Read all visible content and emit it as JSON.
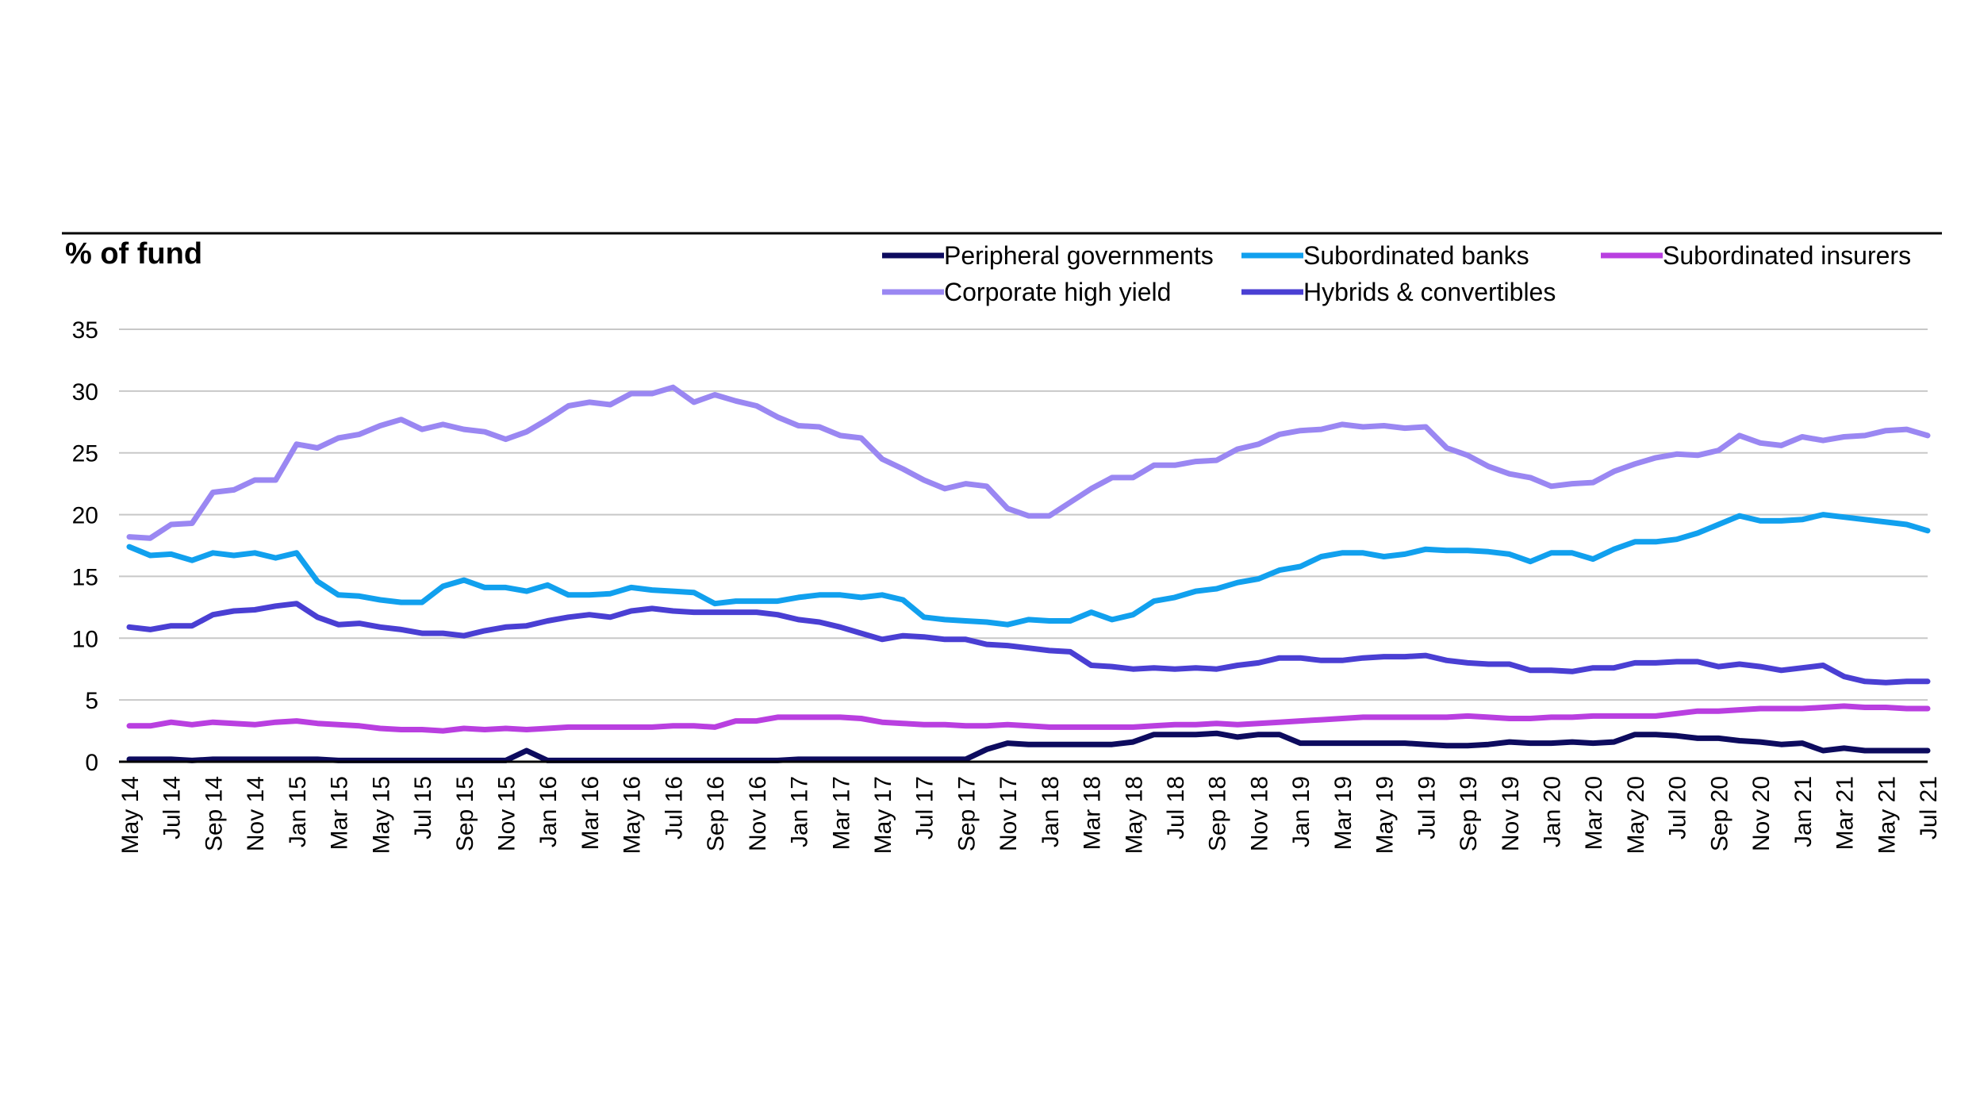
{
  "chart_data": {
    "type": "line",
    "ylabel": "% of fund",
    "ylim": [
      0,
      35
    ],
    "yticks": [
      0,
      5,
      10,
      15,
      20,
      25,
      30,
      35
    ],
    "grid": true,
    "legend_position": "top-right",
    "x": [
      "May 14",
      "Jun 14",
      "Jul 14",
      "Aug 14",
      "Sep 14",
      "Oct 14",
      "Nov 14",
      "Dec 14",
      "Jan 15",
      "Feb 15",
      "Mar 15",
      "Apr 15",
      "May 15",
      "Jun 15",
      "Jul 15",
      "Aug 15",
      "Sep 15",
      "Oct 15",
      "Nov 15",
      "Dec 15",
      "Jan 16",
      "Feb 16",
      "Mar 16",
      "Apr 16",
      "May 16",
      "Jun 16",
      "Jul 16",
      "Aug 16",
      "Sep 16",
      "Oct 16",
      "Nov 16",
      "Dec 16",
      "Jan 17",
      "Feb 17",
      "Mar 17",
      "Apr 17",
      "May 17",
      "Jun 17",
      "Jul 17",
      "Aug 17",
      "Sep 17",
      "Oct 17",
      "Nov 17",
      "Dec 17",
      "Jan 18",
      "Feb 18",
      "Mar 18",
      "Apr 18",
      "May 18",
      "Jun 18",
      "Jul 18",
      "Aug 18",
      "Sep 18",
      "Oct 18",
      "Nov 18",
      "Dec 18",
      "Jan 19",
      "Feb 19",
      "Mar 19",
      "Apr 19",
      "May 19",
      "Jun 19",
      "Jul 19",
      "Aug 19",
      "Sep 19",
      "Oct 19",
      "Nov 19",
      "Dec 19",
      "Jan 20",
      "Feb 20",
      "Mar 20",
      "Apr 20",
      "May 20",
      "Jun 20",
      "Jul 20",
      "Aug 20",
      "Sep 20",
      "Oct 20",
      "Nov 20",
      "Dec 20",
      "Jan 21",
      "Feb 21",
      "Mar 21",
      "Apr 21",
      "May 21",
      "Jun 21",
      "Jul 21"
    ],
    "xtick_labels": [
      "May 14",
      "Jul 14",
      "Sep 14",
      "Nov 14",
      "Jan 15",
      "Mar 15",
      "May 15",
      "Jul 15",
      "Sep 15",
      "Nov 15",
      "Jan 16",
      "Mar 16",
      "May 16",
      "Jul 16",
      "Sep 16",
      "Nov 16",
      "Jan 17",
      "Mar 17",
      "May 17",
      "Jul 17",
      "Sep 17",
      "Nov 17",
      "Jan 18",
      "Mar 18",
      "May 18",
      "Jul 18",
      "Sep 18",
      "Nov 18",
      "Jan 19",
      "Mar 19",
      "May 19",
      "Jul 19",
      "Sep 19",
      "Nov 19",
      "Jan 20",
      "Mar 20",
      "May 20",
      "Jul 20",
      "Sep 20",
      "Nov 20",
      "Jan 21",
      "Mar 21",
      "May 21",
      "Jul 21"
    ],
    "series": [
      {
        "name": "Corporate high yield",
        "color": "#9a87f2",
        "values": [
          18.2,
          18.1,
          19.2,
          19.3,
          21.8,
          22.0,
          22.8,
          22.8,
          25.7,
          25.4,
          26.2,
          26.5,
          27.2,
          27.7,
          26.9,
          27.3,
          26.9,
          26.7,
          26.1,
          26.7,
          27.7,
          28.8,
          29.1,
          28.9,
          29.8,
          29.8,
          30.3,
          29.1,
          29.7,
          29.2,
          28.8,
          27.9,
          27.2,
          27.1,
          26.4,
          26.2,
          24.5,
          23.7,
          22.8,
          22.1,
          22.5,
          22.3,
          20.5,
          19.9,
          19.9,
          21.0,
          22.1,
          23.0,
          23.0,
          24.0,
          24.0,
          24.3,
          24.4,
          25.3,
          25.7,
          26.5,
          26.8,
          26.9,
          27.3,
          27.1,
          27.2,
          27.0,
          27.1,
          25.4,
          24.8,
          23.9,
          23.3,
          23.0,
          22.3,
          22.5,
          22.6,
          23.5,
          24.1,
          24.6,
          24.9,
          24.8,
          25.2,
          26.4,
          25.8,
          25.6,
          26.3,
          26.0,
          26.3,
          26.4,
          26.8,
          26.9,
          26.4
        ]
      },
      {
        "name": "Subordinated banks",
        "color": "#11a0ee",
        "values": [
          17.4,
          16.7,
          16.8,
          16.3,
          16.9,
          16.7,
          16.9,
          16.5,
          16.9,
          14.6,
          13.5,
          13.4,
          13.1,
          12.9,
          12.9,
          14.2,
          14.7,
          14.1,
          14.1,
          13.8,
          14.3,
          13.5,
          13.5,
          13.6,
          14.1,
          13.9,
          13.8,
          13.7,
          12.8,
          13.0,
          13.0,
          13.0,
          13.3,
          13.5,
          13.5,
          13.3,
          13.5,
          13.1,
          11.7,
          11.5,
          11.4,
          11.3,
          11.1,
          11.5,
          11.4,
          11.4,
          12.1,
          11.5,
          11.9,
          13.0,
          13.3,
          13.8,
          14.0,
          14.5,
          14.8,
          15.5,
          15.8,
          16.6,
          16.9,
          16.9,
          16.6,
          16.8,
          17.2,
          17.1,
          17.1,
          17.0,
          16.8,
          16.2,
          16.9,
          16.9,
          16.4,
          17.2,
          17.8,
          17.8,
          18.0,
          18.5,
          19.2,
          19.9,
          19.5,
          19.5,
          19.6,
          20.0,
          19.8,
          19.6,
          19.4,
          19.2,
          18.7
        ]
      },
      {
        "name": "Hybrids & convertibles",
        "color": "#4a3fd3",
        "values": [
          10.9,
          10.7,
          11.0,
          11.0,
          11.9,
          12.2,
          12.3,
          12.6,
          12.8,
          11.7,
          11.1,
          11.2,
          10.9,
          10.7,
          10.4,
          10.4,
          10.2,
          10.6,
          10.9,
          11.0,
          11.4,
          11.7,
          11.9,
          11.7,
          12.2,
          12.4,
          12.2,
          12.1,
          12.1,
          12.1,
          12.1,
          11.9,
          11.5,
          11.3,
          10.9,
          10.4,
          9.9,
          10.2,
          10.1,
          9.9,
          9.9,
          9.5,
          9.4,
          9.2,
          9.0,
          8.9,
          7.8,
          7.7,
          7.5,
          7.6,
          7.5,
          7.6,
          7.5,
          7.8,
          8.0,
          8.4,
          8.4,
          8.2,
          8.2,
          8.4,
          8.5,
          8.5,
          8.6,
          8.2,
          8.0,
          7.9,
          7.9,
          7.4,
          7.4,
          7.3,
          7.6,
          7.6,
          8.0,
          8.0,
          8.1,
          8.1,
          7.7,
          7.9,
          7.7,
          7.4,
          7.6,
          7.8,
          6.9,
          6.5,
          6.4,
          6.5,
          6.5
        ]
      },
      {
        "name": "Subordinated insurers",
        "color": "#b93fe0",
        "values": [
          2.9,
          2.9,
          3.2,
          3.0,
          3.2,
          3.1,
          3.0,
          3.2,
          3.3,
          3.1,
          3.0,
          2.9,
          2.7,
          2.6,
          2.6,
          2.5,
          2.7,
          2.6,
          2.7,
          2.6,
          2.7,
          2.8,
          2.8,
          2.8,
          2.8,
          2.8,
          2.9,
          2.9,
          2.8,
          3.3,
          3.3,
          3.6,
          3.6,
          3.6,
          3.6,
          3.5,
          3.2,
          3.1,
          3.0,
          3.0,
          2.9,
          2.9,
          3.0,
          2.9,
          2.8,
          2.8,
          2.8,
          2.8,
          2.8,
          2.9,
          3.0,
          3.0,
          3.1,
          3.0,
          3.1,
          3.2,
          3.3,
          3.4,
          3.5,
          3.6,
          3.6,
          3.6,
          3.6,
          3.6,
          3.7,
          3.6,
          3.5,
          3.5,
          3.6,
          3.6,
          3.7,
          3.7,
          3.7,
          3.7,
          3.9,
          4.1,
          4.1,
          4.2,
          4.3,
          4.3,
          4.3,
          4.4,
          4.5,
          4.4,
          4.4,
          4.3,
          4.3
        ]
      },
      {
        "name": "Peripheral governments",
        "color": "#0d0b5e",
        "values": [
          0.2,
          0.2,
          0.2,
          0.1,
          0.2,
          0.2,
          0.2,
          0.2,
          0.2,
          0.2,
          0.1,
          0.1,
          0.1,
          0.1,
          0.1,
          0.1,
          0.1,
          0.1,
          0.1,
          0.9,
          0.1,
          0.1,
          0.1,
          0.1,
          0.1,
          0.1,
          0.1,
          0.1,
          0.1,
          0.1,
          0.1,
          0.1,
          0.2,
          0.2,
          0.2,
          0.2,
          0.2,
          0.2,
          0.2,
          0.2,
          0.2,
          1.0,
          1.5,
          1.4,
          1.4,
          1.4,
          1.4,
          1.4,
          1.6,
          2.2,
          2.2,
          2.2,
          2.3,
          2.0,
          2.2,
          2.2,
          1.5,
          1.5,
          1.5,
          1.5,
          1.5,
          1.5,
          1.4,
          1.3,
          1.3,
          1.4,
          1.6,
          1.5,
          1.5,
          1.6,
          1.5,
          1.6,
          2.2,
          2.2,
          2.1,
          1.9,
          1.9,
          1.7,
          1.6,
          1.4,
          1.5,
          0.9,
          1.1,
          0.9,
          0.9,
          0.9,
          0.9
        ]
      }
    ],
    "legend": [
      {
        "name": "Peripheral governments",
        "color": "#0d0b5e"
      },
      {
        "name": "Subordinated banks",
        "color": "#11a0ee"
      },
      {
        "name": "Subordinated insurers",
        "color": "#b93fe0"
      },
      {
        "name": "Corporate high yield",
        "color": "#9a87f2"
      },
      {
        "name": "Hybrids & convertibles",
        "color": "#4a3fd3"
      }
    ]
  }
}
